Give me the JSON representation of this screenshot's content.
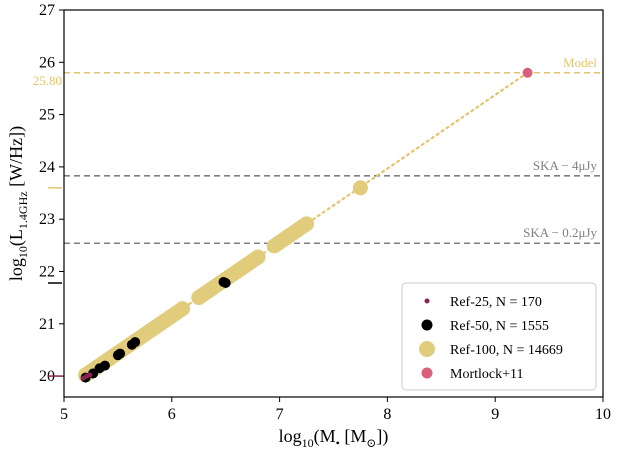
{
  "chart_data": {
    "type": "scatter",
    "xlabel_main": "log",
    "xlabel_sub": "10",
    "xlabel_rest": "(M",
    "xlabel_sub2": "•",
    "xlabel_units": " [M",
    "xlabel_sub3": "⊙",
    "xlabel_end": "])",
    "ylabel_main": "log",
    "ylabel_sub": "10",
    "ylabel_rest": "(L",
    "ylabel_sub2": "1.4GHz",
    "ylabel_end": " [W/Hz])",
    "xlim": [
      5,
      10
    ],
    "ylim": [
      19.6,
      27
    ],
    "x_ticks": [
      5,
      6,
      7,
      8,
      9,
      10
    ],
    "y_ticks": [
      20,
      21,
      22,
      23,
      24,
      25,
      26,
      27
    ],
    "colors": {
      "ref25": "#8b2252",
      "ref50": "#000000",
      "ref100": "#e0cc7a",
      "mortlock": "#d9607a",
      "model_line": "#e3c56e",
      "ska_line": "#808080"
    },
    "hlines": [
      {
        "name": "Model",
        "y": 25.8,
        "color": "#e3c56e",
        "value_label": "25.80"
      },
      {
        "name": "SKA − 4μJy",
        "y": 23.83,
        "color": "#808080"
      },
      {
        "name": "SKA − 0.2μJy",
        "y": 22.54,
        "color": "#808080"
      }
    ],
    "left_ticks": [
      {
        "y": 23.6,
        "color": "#e3c56e"
      },
      {
        "y": 21.78,
        "color": "#000000"
      },
      {
        "y": 20.0,
        "color": "#8b2252"
      }
    ],
    "model_line": {
      "x": [
        5.15,
        9.3
      ],
      "y": [
        19.95,
        25.8
      ]
    },
    "series": [
      {
        "name": "Ref-100, N = 14669",
        "segments": [
          [
            5.2,
            5.65
          ],
          [
            5.65,
            6.1
          ],
          [
            6.25,
            6.8
          ],
          [
            6.95,
            7.25
          ]
        ],
        "extra_points": [
          {
            "x": 7.75,
            "y": 23.6
          }
        ]
      },
      {
        "name": "Ref-50, N = 1555",
        "points": [
          {
            "x": 5.2,
            "y": 19.97
          },
          {
            "x": 5.27,
            "y": 20.05
          },
          {
            "x": 5.33,
            "y": 20.15
          },
          {
            "x": 5.38,
            "y": 20.2
          },
          {
            "x": 5.5,
            "y": 20.4
          },
          {
            "x": 5.52,
            "y": 20.43
          },
          {
            "x": 5.63,
            "y": 20.6
          },
          {
            "x": 5.66,
            "y": 20.65
          },
          {
            "x": 6.48,
            "y": 21.8
          },
          {
            "x": 6.5,
            "y": 21.78
          }
        ]
      },
      {
        "name": "Ref-25, N = 170",
        "points": [
          {
            "x": 5.18,
            "y": 19.96
          },
          {
            "x": 5.21,
            "y": 20.0
          },
          {
            "x": 5.24,
            "y": 20.02
          }
        ]
      },
      {
        "name": "Mortlock+11",
        "points": [
          {
            "x": 9.3,
            "y": 25.8
          }
        ]
      }
    ],
    "legend": {
      "position": "lower-right",
      "entries": [
        "Ref-25, N = 170",
        "Ref-50, N = 1555",
        "Ref-100, N = 14669",
        "Mortlock+11"
      ]
    }
  }
}
